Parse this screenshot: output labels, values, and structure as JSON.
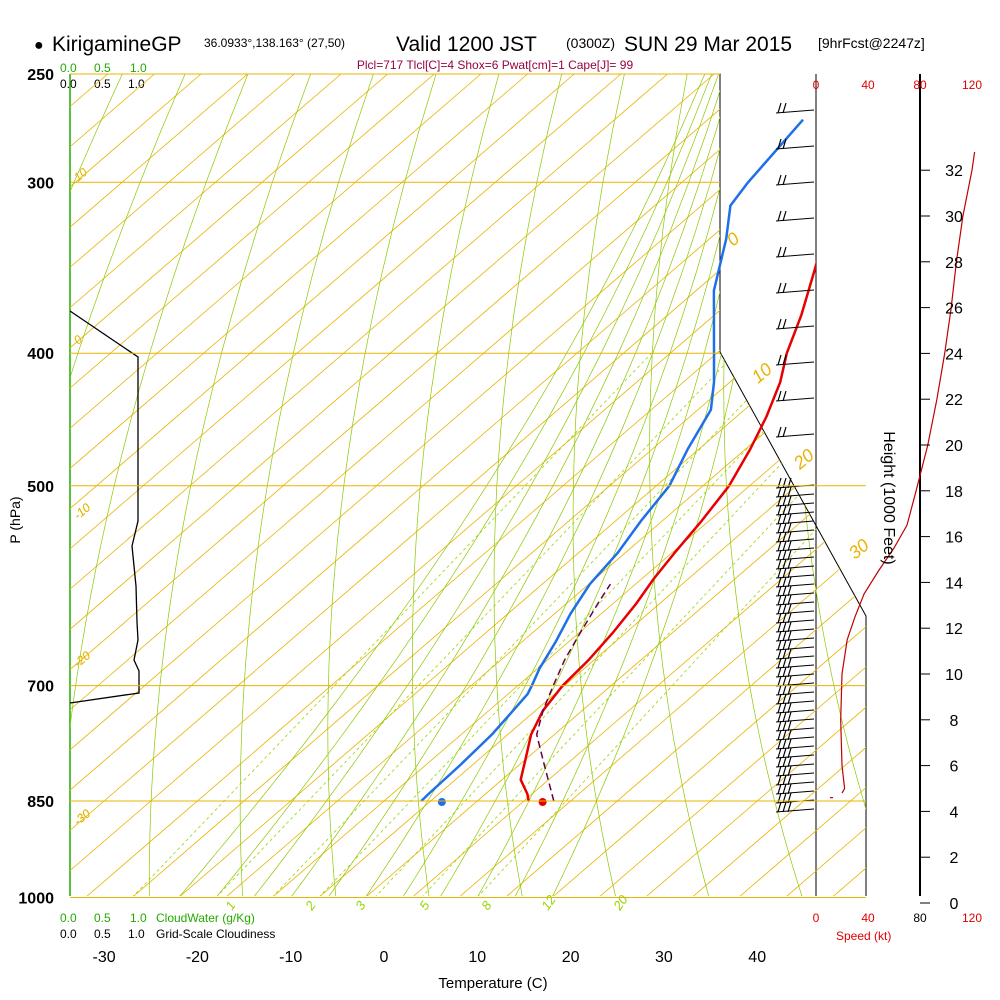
{
  "header": {
    "bullet": "●",
    "site_name": "KirigamineGP",
    "coords": "36.0933°,138.163° (27,50)",
    "valid": "Valid 1200 JST",
    "zulu": "(0300Z)",
    "date": "SUN 29 Mar 2015",
    "forecast": "[9hrFcst@2247z]"
  },
  "indices": "Plcl=717 Tlcl[C]=4 Shox=6 Pwat[cm]=1 Cape[J]= 99",
  "cloud_scales": {
    "top_green": [
      "0.0",
      "0.5",
      "1.0"
    ],
    "top_black": [
      "0.0",
      "0.5",
      "1.0"
    ],
    "bottom_green": [
      "0.0",
      "0.5",
      "1.0"
    ],
    "bottom_black": [
      "0.0",
      "0.5",
      "1.0"
    ],
    "cloudwater_label": "CloudWater (g/Kg)",
    "cloudiness_label": "Grid-Scale Cloudiness"
  },
  "colors": {
    "isotherm": "#e8b400",
    "dry_adiabat": "#8cc800",
    "moist_adiabat": "#8cc800",
    "mixing_ratio": "#9ad400",
    "temperature": "#e80000",
    "dewpoint": "#1e6fe8",
    "parcel": "#6a0040",
    "cloud": "#22aa00",
    "speed": "#c00000",
    "index": "#990044"
  },
  "chart_data": {
    "type": "skew-t",
    "ylabel": "P (hPa)",
    "xlabel": "Temperature (C)",
    "pressure_ticks": [
      250,
      300,
      400,
      500,
      700,
      850,
      1000
    ],
    "temperature_ticks": [
      -30,
      -20,
      -10,
      0,
      10,
      20,
      30,
      40
    ],
    "temperature_range": [
      -33.5,
      45
    ],
    "pressure_range": [
      250,
      1000
    ],
    "height_axis": {
      "label": "Height (1000 Feet)",
      "ticks": [
        0,
        2,
        4,
        6,
        8,
        10,
        12,
        14,
        16,
        18,
        20,
        22,
        24,
        26,
        28,
        30,
        32
      ]
    },
    "speed_axis": {
      "label": "Speed (kt)",
      "ticks": [
        0,
        40,
        80,
        120
      ]
    },
    "isotherm_labels": [
      "0",
      "10",
      "20",
      "30",
      "-10",
      "-20",
      "-30",
      "10",
      "0",
      "-10",
      "-20",
      "-30"
    ],
    "mixing_ratio_labels": [
      "1",
      "2",
      "3",
      "5",
      "8",
      "12",
      "20"
    ],
    "temperature_profile": [
      {
        "p": 850,
        "t": 15.5
      },
      {
        "p": 840,
        "t": 14.5
      },
      {
        "p": 820,
        "t": 12.0
      },
      {
        "p": 790,
        "t": 9.8
      },
      {
        "p": 760,
        "t": 7.5
      },
      {
        "p": 730,
        "t": 5.8
      },
      {
        "p": 700,
        "t": 4.8
      },
      {
        "p": 670,
        "t": 4.4
      },
      {
        "p": 640,
        "t": 3.6
      },
      {
        "p": 610,
        "t": 2.5
      },
      {
        "p": 585,
        "t": 1.3
      },
      {
        "p": 560,
        "t": 0.3
      },
      {
        "p": 530,
        "t": -0.8
      },
      {
        "p": 500,
        "t": -2.2
      },
      {
        "p": 470,
        "t": -4.5
      },
      {
        "p": 445,
        "t": -6.8
      },
      {
        "p": 420,
        "t": -9.6
      },
      {
        "p": 400,
        "t": -12.5
      },
      {
        "p": 375,
        "t": -15.7
      },
      {
        "p": 350,
        "t": -19.5
      },
      {
        "p": 320,
        "t": -24.5
      },
      {
        "p": 300,
        "t": -28.5
      },
      {
        "p": 270,
        "t": -34.7
      }
    ],
    "dewpoint_profile": [
      {
        "p": 850,
        "t": 4.0
      },
      {
        "p": 840,
        "t": 3.9
      },
      {
        "p": 800,
        "t": 3.7
      },
      {
        "p": 760,
        "t": 3.3
      },
      {
        "p": 730,
        "t": 2.6
      },
      {
        "p": 710,
        "t": 2.1
      },
      {
        "p": 700,
        "t": 1.5
      },
      {
        "p": 680,
        "t": 0.2
      },
      {
        "p": 650,
        "t": -1.4
      },
      {
        "p": 620,
        "t": -3.3
      },
      {
        "p": 590,
        "t": -4.9
      },
      {
        "p": 560,
        "t": -5.8
      },
      {
        "p": 530,
        "t": -7.3
      },
      {
        "p": 500,
        "t": -8.6
      },
      {
        "p": 470,
        "t": -11.2
      },
      {
        "p": 440,
        "t": -13.6
      },
      {
        "p": 420,
        "t": -16.7
      },
      {
        "p": 400,
        "t": -20.3
      },
      {
        "p": 360,
        "t": -28.1
      },
      {
        "p": 330,
        "t": -33.2
      },
      {
        "p": 312,
        "t": -36.9
      },
      {
        "p": 300,
        "t": -37.9
      },
      {
        "p": 270,
        "t": -39.8
      }
    ],
    "parcel_profile": [
      {
        "p": 850,
        "t": 18.2
      },
      {
        "p": 800,
        "t": 12.7
      },
      {
        "p": 760,
        "t": 8.1
      },
      {
        "p": 730,
        "t": 5.8
      },
      {
        "p": 700,
        "t": 3.8
      },
      {
        "p": 670,
        "t": 1.8
      },
      {
        "p": 640,
        "t": 0.1
      },
      {
        "p": 610,
        "t": -1.6
      },
      {
        "p": 590,
        "t": -2.7
      }
    ],
    "surface_temperature": 17.0,
    "surface_dewpoint": 6.2,
    "wind_speed_profile": [
      {
        "ft": 4.8,
        "kt": 20
      },
      {
        "ft": 5.0,
        "kt": 22
      },
      {
        "ft": 6.0,
        "kt": 20
      },
      {
        "ft": 8.0,
        "kt": 19
      },
      {
        "ft": 10.0,
        "kt": 20
      },
      {
        "ft": 11.5,
        "kt": 24
      },
      {
        "ft": 12.5,
        "kt": 30
      },
      {
        "ft": 13.5,
        "kt": 37
      },
      {
        "ft": 14.5,
        "kt": 48
      },
      {
        "ft": 15.5,
        "kt": 60
      },
      {
        "ft": 16.5,
        "kt": 70
      },
      {
        "ft": 18.0,
        "kt": 77
      },
      {
        "ft": 20.0,
        "kt": 86
      },
      {
        "ft": 22.0,
        "kt": 93
      },
      {
        "ft": 24.0,
        "kt": 99
      },
      {
        "ft": 26.0,
        "kt": 104
      },
      {
        "ft": 28.0,
        "kt": 108
      },
      {
        "ft": 30.0,
        "kt": 113
      },
      {
        "ft": 32.0,
        "kt": 120
      },
      {
        "ft": 32.8,
        "kt": 122
      }
    ]
  }
}
